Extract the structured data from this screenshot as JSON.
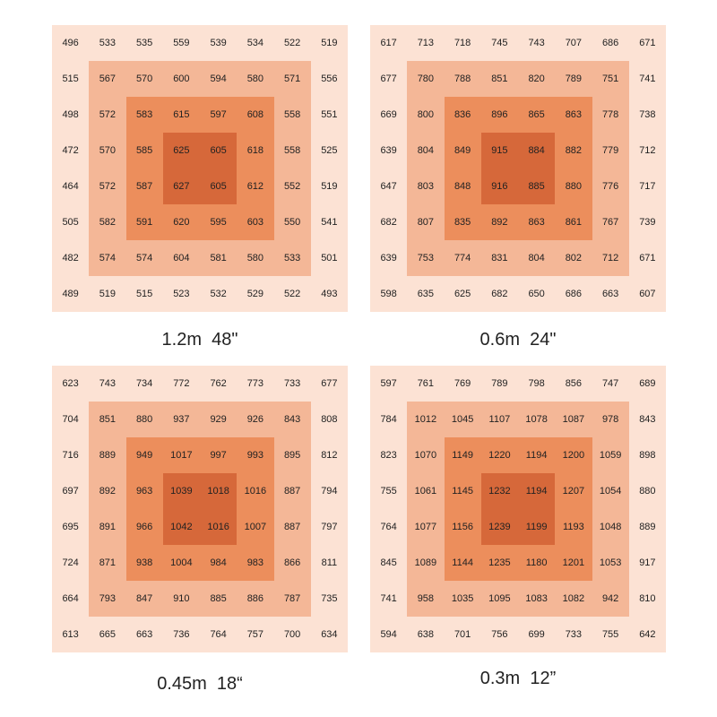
{
  "grids": [
    {
      "label": "1.2m  48\"",
      "rows": [
        [
          496,
          533,
          535,
          559,
          539,
          534,
          522,
          519
        ],
        [
          515,
          567,
          570,
          600,
          594,
          580,
          571,
          556
        ],
        [
          498,
          572,
          583,
          615,
          597,
          608,
          558,
          551
        ],
        [
          472,
          570,
          585,
          625,
          605,
          618,
          558,
          525
        ],
        [
          464,
          572,
          587,
          627,
          605,
          612,
          552,
          519
        ],
        [
          505,
          582,
          591,
          620,
          595,
          603,
          550,
          541
        ],
        [
          482,
          574,
          574,
          604,
          581,
          580,
          533,
          501
        ],
        [
          489,
          519,
          515,
          523,
          532,
          529,
          522,
          493
        ]
      ]
    },
    {
      "label": "0.6m  24\"",
      "rows": [
        [
          617,
          713,
          718,
          745,
          743,
          707,
          686,
          671
        ],
        [
          677,
          780,
          788,
          851,
          820,
          789,
          751,
          741
        ],
        [
          669,
          800,
          836,
          896,
          865,
          863,
          778,
          738
        ],
        [
          639,
          804,
          849,
          915,
          884,
          882,
          779,
          712
        ],
        [
          647,
          803,
          848,
          916,
          885,
          880,
          776,
          717
        ],
        [
          682,
          807,
          835,
          892,
          863,
          861,
          767,
          739
        ],
        [
          639,
          753,
          774,
          831,
          804,
          802,
          712,
          671
        ],
        [
          598,
          635,
          625,
          682,
          650,
          686,
          663,
          607
        ]
      ]
    },
    {
      "label": "0.45m  18“",
      "rows": [
        [
          623,
          743,
          734,
          772,
          762,
          773,
          733,
          677
        ],
        [
          704,
          851,
          880,
          937,
          929,
          926,
          843,
          808
        ],
        [
          716,
          889,
          949,
          1017,
          997,
          993,
          895,
          812
        ],
        [
          697,
          892,
          963,
          1039,
          1018,
          1016,
          887,
          794
        ],
        [
          695,
          891,
          966,
          1042,
          1016,
          1007,
          887,
          797
        ],
        [
          724,
          871,
          938,
          1004,
          984,
          983,
          866,
          811
        ],
        [
          664,
          793,
          847,
          910,
          885,
          886,
          787,
          735
        ],
        [
          613,
          665,
          663,
          736,
          764,
          757,
          700,
          634
        ]
      ]
    },
    {
      "label": "0.3m  12”",
      "rows": [
        [
          597,
          761,
          769,
          789,
          798,
          856,
          747,
          689
        ],
        [
          784,
          1012,
          1045,
          1107,
          1078,
          1087,
          978,
          843
        ],
        [
          823,
          1070,
          1149,
          1220,
          1194,
          1200,
          1059,
          898
        ],
        [
          755,
          1061,
          1145,
          1232,
          1194,
          1207,
          1054,
          880
        ],
        [
          764,
          1077,
          1156,
          1239,
          1199,
          1193,
          1048,
          889
        ],
        [
          845,
          1089,
          1144,
          1235,
          1180,
          1201,
          1053,
          917
        ],
        [
          741,
          958,
          1035,
          1095,
          1083,
          1082,
          942,
          810
        ],
        [
          594,
          638,
          701,
          756,
          699,
          733,
          755,
          642
        ]
      ]
    }
  ]
}
